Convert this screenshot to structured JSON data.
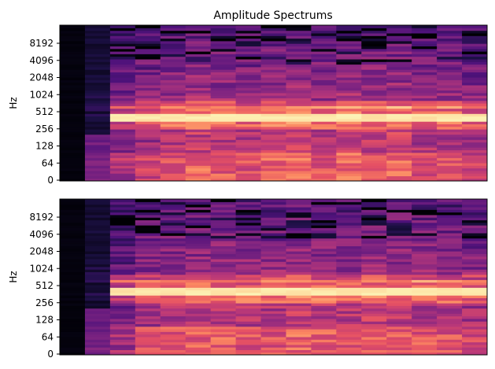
{
  "figure": {
    "title": "Amplitude Spectrums"
  },
  "chart_data": [
    {
      "type": "heatmap",
      "panel": "top",
      "title": "Amplitude Spectrums",
      "ylabel": "Hz",
      "xlabel": "",
      "y_scale": "log-like (symlog)",
      "y_ticks": [
        "0",
        "64",
        "128",
        "256",
        "512",
        "1024",
        "2048",
        "4096",
        "8192"
      ],
      "x_ticks": [],
      "colormap": "magma",
      "time_frames": 17,
      "dominant_band_hz": 256,
      "frame_energy": [
        0.02,
        0.1,
        0.62,
        0.72,
        0.8,
        0.86,
        0.82,
        0.78,
        0.84,
        0.9,
        0.8,
        0.86,
        0.84,
        0.88,
        0.78,
        0.8,
        0.72
      ]
    },
    {
      "type": "heatmap",
      "panel": "bottom",
      "title": "",
      "ylabel": "Hz",
      "xlabel": "",
      "y_scale": "log-like (symlog)",
      "y_ticks": [
        "0",
        "64",
        "128",
        "256",
        "512",
        "1024",
        "2048",
        "4096",
        "8192"
      ],
      "x_ticks": [],
      "colormap": "magma",
      "time_frames": 17,
      "dominant_band_hz": 256,
      "frame_energy": [
        0.02,
        0.18,
        0.58,
        0.74,
        0.8,
        0.82,
        0.84,
        0.8,
        0.78,
        0.86,
        0.82,
        0.8,
        0.86,
        0.84,
        0.8,
        0.78,
        0.74
      ]
    }
  ]
}
